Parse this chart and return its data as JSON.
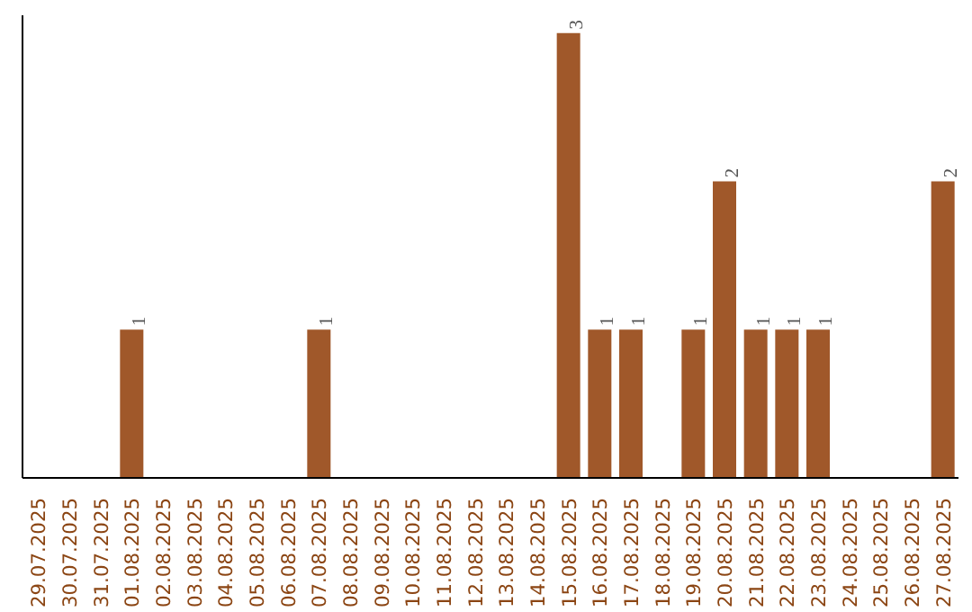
{
  "chart_data": {
    "type": "bar",
    "categories": [
      "29.07.2025",
      "30.07.2025",
      "31.07.2025",
      "01.08.2025",
      "02.08.2025",
      "03.08.2025",
      "04.08.2025",
      "05.08.2025",
      "06.08.2025",
      "07.08.2025",
      "08.08.2025",
      "09.08.2025",
      "10.08.2025",
      "11.08.2025",
      "12.08.2025",
      "13.08.2025",
      "14.08.2025",
      "15.08.2025",
      "16.08.2025",
      "17.08.2025",
      "18.08.2025",
      "19.08.2025",
      "20.08.2025",
      "21.08.2025",
      "22.08.2025",
      "23.08.2025",
      "24.08.2025",
      "25.08.2025",
      "26.08.2025",
      "27.08.2025"
    ],
    "values": [
      0,
      0,
      0,
      1,
      0,
      0,
      0,
      0,
      0,
      1,
      0,
      0,
      0,
      0,
      0,
      0,
      0,
      3,
      1,
      1,
      0,
      1,
      2,
      1,
      1,
      1,
      0,
      0,
      0,
      2
    ],
    "value_labels": [
      null,
      null,
      null,
      "1",
      null,
      null,
      null,
      null,
      null,
      "1",
      null,
      null,
      null,
      null,
      null,
      null,
      null,
      "3",
      "1",
      "1",
      null,
      "1",
      "2",
      "1",
      "1",
      "1",
      null,
      null,
      null,
      "2"
    ],
    "color": "#a0582a",
    "tick_labels": "x",
    "grid": false
  }
}
